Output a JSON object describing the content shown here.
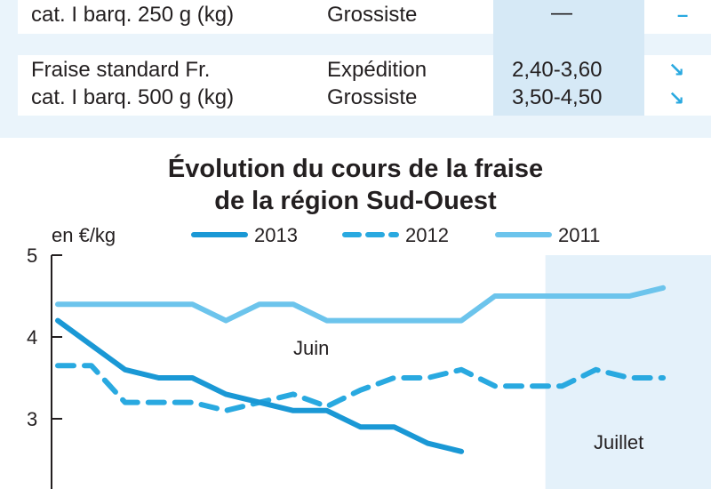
{
  "table": {
    "rows": [
      {
        "product_line1": "",
        "product_line2": "cat. I barq. 250 g (kg)",
        "stages": [
          "",
          "Grossiste"
        ],
        "prices": [
          "",
          "—"
        ],
        "trends": [
          "",
          "–"
        ]
      },
      {
        "product_line1": "Fraise standard Fr.",
        "product_line2": "cat. I barq. 500 g (kg)",
        "stages": [
          "Expédition",
          "Grossiste"
        ],
        "prices": [
          "2,40-3,60",
          "3,50-4,50"
        ],
        "trends": [
          "↘",
          "↘"
        ]
      }
    ]
  },
  "chart_data": {
    "type": "line",
    "title": "Évolution du cours de la fraise de la région Sud-Ouest",
    "title_lines": [
      "Évolution du cours de la fraise",
      "de la région Sud-Ouest"
    ],
    "ylabel": "en €/kg",
    "ylim": [
      2,
      5
    ],
    "yticks": [
      5,
      4,
      3
    ],
    "x_range": [
      0,
      37
    ],
    "period_labels": {
      "june": "Juin",
      "july": "Juillet"
    },
    "july_start_x": 29,
    "legend_position": "top",
    "colors": {
      "s2013": "#1a98d5",
      "s2012": "#29a9e0",
      "s2011": "#6cc4ec",
      "shade": "#e4f1fa",
      "axis": "#231f20"
    },
    "series": [
      {
        "name": "2013",
        "style": "solid",
        "x": [
          0,
          2,
          4,
          6,
          8,
          10,
          12,
          14,
          16,
          18,
          20,
          22,
          24
        ],
        "y": [
          4.2,
          3.9,
          3.6,
          3.5,
          3.5,
          3.3,
          3.2,
          3.1,
          3.1,
          2.9,
          2.9,
          2.7,
          2.6
        ]
      },
      {
        "name": "2012",
        "style": "dashed",
        "x": [
          0,
          2,
          4,
          6,
          8,
          10,
          12,
          14,
          16,
          18,
          20,
          22,
          24,
          26,
          28,
          30,
          32,
          34,
          36
        ],
        "y": [
          3.65,
          3.65,
          3.2,
          3.2,
          3.2,
          3.1,
          3.2,
          3.3,
          3.15,
          3.35,
          3.5,
          3.5,
          3.6,
          3.4,
          3.4,
          3.4,
          3.6,
          3.5,
          3.5
        ]
      },
      {
        "name": "2011",
        "style": "solid-light",
        "x": [
          0,
          2,
          4,
          6,
          8,
          10,
          12,
          14,
          16,
          18,
          20,
          22,
          24,
          26,
          28,
          30,
          32,
          34,
          36
        ],
        "y": [
          4.4,
          4.4,
          4.4,
          4.4,
          4.4,
          4.2,
          4.4,
          4.4,
          4.2,
          4.2,
          4.2,
          4.2,
          4.2,
          4.5,
          4.5,
          4.5,
          4.5,
          4.5,
          4.6
        ]
      }
    ]
  }
}
